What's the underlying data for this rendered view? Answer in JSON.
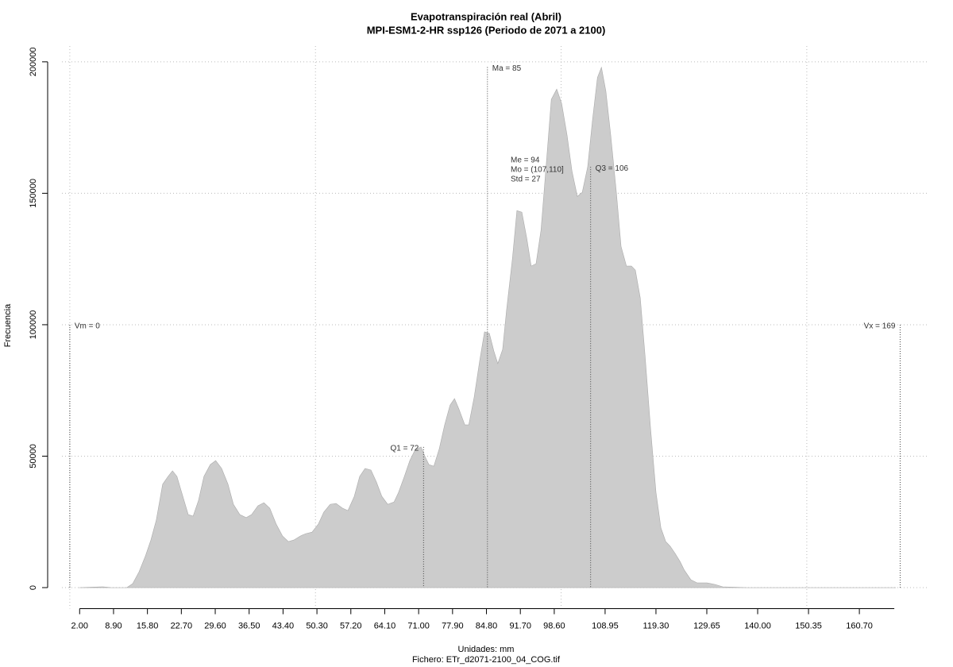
{
  "chart_data": {
    "type": "area",
    "title": "Evapotranspiración real (Abril)",
    "subtitle": "MPI-ESM1-2-HR ssp126 (Periodo de 2071 a 2100)",
    "xlabel": "Unidades: mm",
    "caption": "Fichero: ETr_d2071-2100_04_COG.tif",
    "ylabel": "Frecuencia",
    "color": "#cccccc",
    "x": [
      1.9,
      6.8,
      8.4,
      10.0,
      11.6,
      12.8,
      14.1,
      15.4,
      16.5,
      17.6,
      18.9,
      20.0,
      20.9,
      21.8,
      23.0,
      24.1,
      25.1,
      26.2,
      27.3,
      28.6,
      29.7,
      30.9,
      32.2,
      33.3,
      34.6,
      35.9,
      37.0,
      38.3,
      39.5,
      40.7,
      42.0,
      43.3,
      44.5,
      45.6,
      46.9,
      48.0,
      49.3,
      50.6,
      51.7,
      53.0,
      54.2,
      55.5,
      56.6,
      57.9,
      59.0,
      60.1,
      61.3,
      62.4,
      63.5,
      64.7,
      66.0,
      66.9,
      68.1,
      69.2,
      70.3,
      71.5,
      72.3,
      73.1,
      74.1,
      75.2,
      76.3,
      77.4,
      78.3,
      79.2,
      80.4,
      81.2,
      82.3,
      83.4,
      84.4,
      85.4,
      86.3,
      87.1,
      88.1,
      88.9,
      90.1,
      91.0,
      92.0,
      93.0,
      93.9,
      94.9,
      95.9,
      97.0,
      98.0,
      99.1,
      100.1,
      101.2,
      102.2,
      103.3,
      104.3,
      105.4,
      106.4,
      107.4,
      108.2,
      109.1,
      110.1,
      111.2,
      112.2,
      113.3,
      114.3,
      115.1,
      116.1,
      117.1,
      118.2,
      119.3,
      120.3,
      121.3,
      122.2,
      123.2,
      124.2,
      125.1,
      126.4,
      127.7,
      129.7,
      131.3,
      132.9,
      137.8,
      168.1
    ],
    "values": [
      0,
      300,
      0,
      0,
      0,
      1500,
      6000,
      12100,
      18100,
      25700,
      39300,
      42300,
      44400,
      42300,
      34700,
      27800,
      27200,
      33200,
      42300,
      46800,
      48300,
      45300,
      39300,
      31700,
      27800,
      26600,
      27800,
      31100,
      32300,
      30200,
      24200,
      19600,
      17500,
      18100,
      19600,
      20500,
      21100,
      24200,
      28700,
      31700,
      32000,
      30200,
      29300,
      34700,
      42300,
      45300,
      44700,
      40200,
      34700,
      31700,
      32600,
      36200,
      42300,
      48300,
      52500,
      53500,
      49800,
      46800,
      46200,
      52800,
      61900,
      69400,
      71900,
      67900,
      61900,
      61900,
      72500,
      86100,
      97300,
      96700,
      90000,
      85200,
      90600,
      105700,
      125300,
      143400,
      142800,
      132900,
      122300,
      123200,
      135900,
      161600,
      185700,
      189600,
      184200,
      172100,
      158500,
      148800,
      150400,
      160100,
      178200,
      194000,
      197900,
      188800,
      172100,
      151000,
      129800,
      122300,
      122300,
      120800,
      110200,
      87600,
      60400,
      36200,
      22700,
      17500,
      15700,
      13000,
      9900,
      6600,
      3000,
      1800,
      1800,
      1200,
      300,
      0,
      0
    ],
    "xlim": [
      -1.6,
      172
    ],
    "ylim": [
      -8000,
      206000
    ],
    "xticks": [
      {
        "value": 2,
        "label": "2.00"
      },
      {
        "value": 8.9,
        "label": "8.90"
      },
      {
        "value": 15.8,
        "label": "15.80"
      },
      {
        "value": 22.7,
        "label": "22.70"
      },
      {
        "value": 29.6,
        "label": "29.60"
      },
      {
        "value": 36.5,
        "label": "36.50"
      },
      {
        "value": 43.4,
        "label": "43.40"
      },
      {
        "value": 50.3,
        "label": "50.30"
      },
      {
        "value": 57.2,
        "label": "57.20"
      },
      {
        "value": 64.1,
        "label": "64.10"
      },
      {
        "value": 71,
        "label": "71.00"
      },
      {
        "value": 77.9,
        "label": "77.90"
      },
      {
        "value": 84.8,
        "label": "84.80"
      },
      {
        "value": 91.7,
        "label": "91.70"
      },
      {
        "value": 98.6,
        "label": "98.60"
      },
      {
        "value": 108.95,
        "label": "108.95"
      },
      {
        "value": 119.3,
        "label": "119.30"
      },
      {
        "value": 129.65,
        "label": "129.65"
      },
      {
        "value": 140,
        "label": "140.00"
      },
      {
        "value": 150.35,
        "label": "150.35"
      },
      {
        "value": 160.7,
        "label": "160.70"
      }
    ],
    "yticks": [
      0,
      50000,
      100000,
      150000,
      200000
    ],
    "xgrid": [
      0,
      50,
      100,
      150
    ],
    "grid": true,
    "markers": [
      {
        "text": "Vm = 0",
        "x": 0,
        "y": 100000
      },
      {
        "text": "Q1 = 72",
        "x": 72,
        "y": 53500
      },
      {
        "text": "Ma = 85",
        "x": 85,
        "y": 198000
      },
      {
        "text": "Q3 = 106",
        "x": 106,
        "y": 160000
      },
      {
        "text": "Vx = 169",
        "x": 169,
        "y": 100000
      }
    ],
    "stats": [
      "Me = 94",
      "Mo = (107,110]",
      "Std = 27"
    ]
  }
}
